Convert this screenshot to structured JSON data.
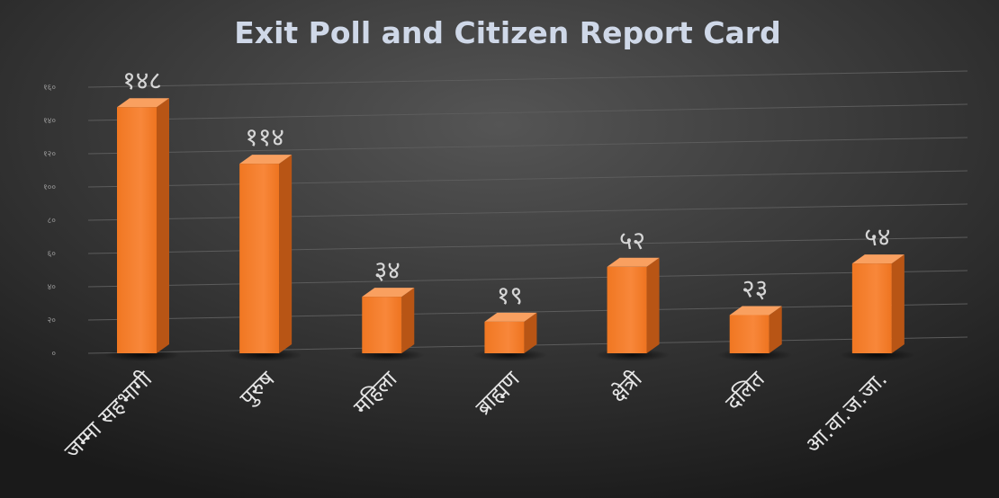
{
  "chart_data": {
    "type": "bar",
    "title": "Exit Poll and Citizen Report Card",
    "categories": [
      "जम्मा सहभागी",
      "पुरुष",
      "महिला",
      "ब्राह्मण",
      "क्षेत्री",
      "दलित",
      "आ.वा.ज.जा."
    ],
    "values": [
      148,
      114,
      34,
      19,
      52,
      23,
      54
    ],
    "data_labels": [
      "१४८",
      "११४",
      "३४",
      "१९",
      "५२",
      "२३",
      "५४"
    ],
    "y_ticks": [
      0,
      20,
      40,
      60,
      80,
      100,
      120,
      140,
      160
    ],
    "y_tick_labels": [
      "०",
      "२०",
      "४०",
      "६०",
      "८०",
      "१००",
      "१२०",
      "१४०",
      "१६०"
    ],
    "ylim": [
      0,
      160
    ],
    "xlabel": "",
    "ylabel": "",
    "grid": true,
    "legend": "none",
    "colors": {
      "background_top": "#4a4a4a",
      "background_bottom": "#1c1c1c",
      "bar_front": "#f57f2a",
      "bar_side": "#b85515",
      "bar_top": "#f9a060",
      "gridline": "#5c5c5c",
      "title": "#cfd8e8"
    }
  }
}
